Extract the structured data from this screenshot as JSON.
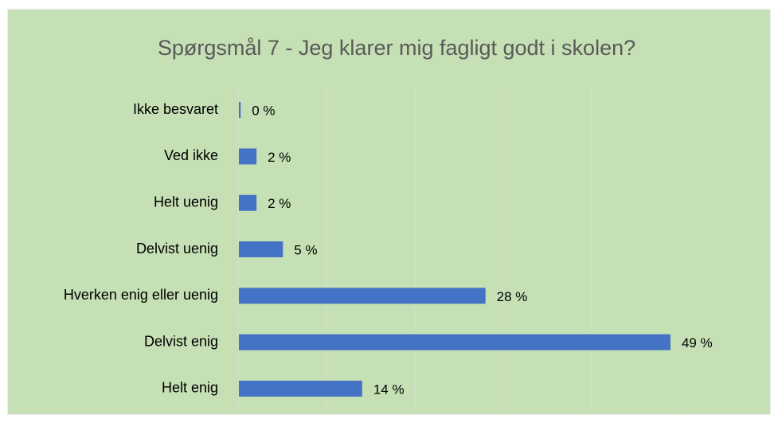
{
  "chart_data": {
    "type": "barh",
    "title": "Spørgsmål 7 - Jeg klarer mig fagligt godt i skolen?",
    "categories": [
      "Ikke besvaret",
      "Ved ikke",
      "Helt uenig",
      "Delvist uenig",
      "Hverken enig eller uenig",
      "Delvist enig",
      "Helt enig"
    ],
    "values": [
      0.2,
      2,
      2,
      5,
      28,
      49,
      14
    ],
    "value_labels": [
      "0 %",
      "2 %",
      "2 %",
      "5 %",
      "28 %",
      "49 %",
      "14 %"
    ],
    "color": "#4472c4",
    "xlim": [
      0,
      50
    ],
    "xticks": [
      0,
      10,
      20,
      30,
      40,
      50
    ],
    "grid": true
  }
}
